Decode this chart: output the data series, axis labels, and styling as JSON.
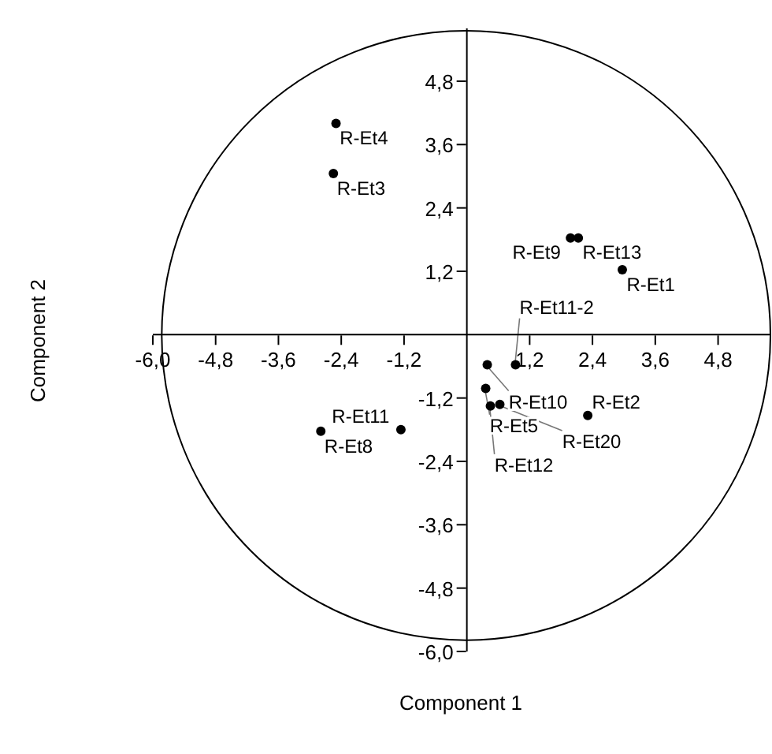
{
  "chart_data": {
    "type": "scatter",
    "xlabel": "Component 1",
    "ylabel": "Component 2",
    "x": [
      -2.5,
      -2.55,
      1.98,
      2.13,
      2.97,
      0.39,
      0.93,
      0.36,
      0.45,
      0.63,
      2.31,
      -2.79,
      -1.26
    ],
    "values": [
      4.0,
      3.05,
      1.83,
      1.83,
      1.23,
      -0.57,
      -0.57,
      -1.02,
      -1.35,
      -1.32,
      -1.53,
      -1.83,
      -1.8
    ],
    "color": "#000000",
    "marker": "circle",
    "grid": false,
    "xlim": [
      -6,
      5.8
    ],
    "ylim": [
      -6,
      5.8
    ],
    "xticks": [
      {
        "value": -6,
        "label": "-6,0"
      },
      {
        "value": -4.8,
        "label": "-4,8"
      },
      {
        "value": -3.6,
        "label": "-3,6"
      },
      {
        "value": -2.4,
        "label": "-2,4"
      },
      {
        "value": -1.2,
        "label": "-1,2"
      },
      {
        "value": 1.2,
        "label": "1,2"
      },
      {
        "value": 2.4,
        "label": "2,4"
      },
      {
        "value": 3.6,
        "label": "3,6"
      },
      {
        "value": 4.8,
        "label": "4,8"
      }
    ],
    "yticks": [
      {
        "value": -6,
        "label": "-6,0"
      },
      {
        "value": -4.8,
        "label": "-4,8"
      },
      {
        "value": -3.6,
        "label": "-3,6"
      },
      {
        "value": -2.4,
        "label": "-2,4"
      },
      {
        "value": -1.2,
        "label": "-1,2"
      },
      {
        "value": 1.2,
        "label": "1,2"
      },
      {
        "value": 2.4,
        "label": "2,4"
      },
      {
        "value": 3.6,
        "label": "3,6"
      },
      {
        "value": 4.8,
        "label": "4,8"
      }
    ],
    "annotations": [
      {
        "text": "R-Et4",
        "x": -2.5,
        "y": 4.0
      },
      {
        "text": "R-Et3",
        "x": -2.55,
        "y": 3.05
      },
      {
        "text": "R-Et9",
        "x": 1.98,
        "y": 1.83
      },
      {
        "text": "R-Et13",
        "x": 2.13,
        "y": 1.83
      },
      {
        "text": "R-Et1",
        "x": 2.97,
        "y": 1.23
      },
      {
        "text": "R-Et10",
        "x": 0.39,
        "y": -0.57
      },
      {
        "text": "R-Et11-2",
        "x": 0.93,
        "y": -0.57
      },
      {
        "text": "R-Et5",
        "x": 0.36,
        "y": -1.02
      },
      {
        "text": "R-Et12",
        "x": 0.45,
        "y": -1.35
      },
      {
        "text": "R-Et20",
        "x": 0.63,
        "y": -1.32
      },
      {
        "text": "R-Et2",
        "x": 2.31,
        "y": -1.53
      },
      {
        "text": "R-Et8",
        "x": -2.79,
        "y": -1.83
      },
      {
        "text": "R-Et11",
        "x": -1.26,
        "y": -1.8
      }
    ]
  }
}
